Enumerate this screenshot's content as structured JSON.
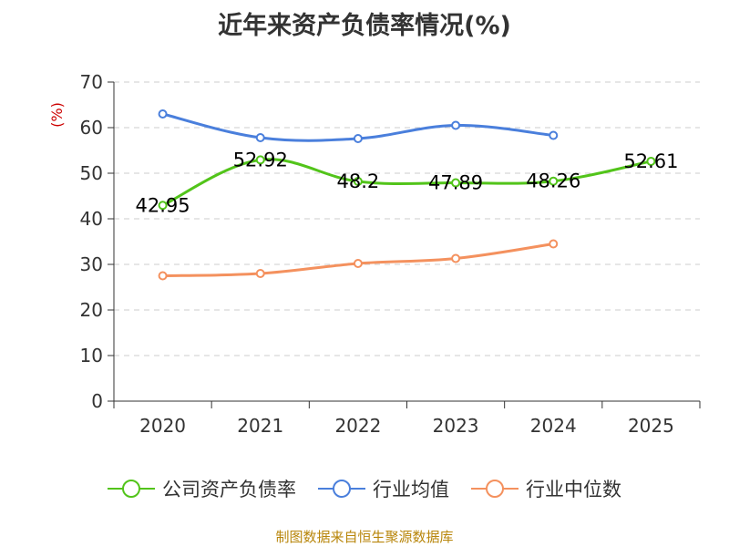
{
  "chart_data": {
    "type": "line",
    "title": "近年来资产负债率情况(%)",
    "ylabel": "(%)",
    "ylim": [
      0,
      70
    ],
    "yticks": [
      0,
      10,
      20,
      30,
      40,
      50,
      60,
      70
    ],
    "grid": true,
    "legend_position": "bottom",
    "categories": [
      "2020",
      "2021",
      "2022",
      "2023",
      "2024",
      "2025"
    ],
    "series": [
      {
        "name": "公司资产负债率",
        "color": "#52c41a",
        "values": [
          42.95,
          52.92,
          48.2,
          47.89,
          48.26,
          52.61
        ],
        "labels": [
          "42.95",
          "52.92",
          "48.2",
          "47.89",
          "48.26",
          "52.61"
        ]
      },
      {
        "name": "行业均值",
        "color": "#4a7fdc",
        "values": [
          63.0,
          57.8,
          57.6,
          60.5,
          58.3,
          null
        ]
      },
      {
        "name": "行业中位数",
        "color": "#f4915e",
        "values": [
          27.5,
          28.0,
          30.2,
          31.3,
          34.5,
          null
        ]
      }
    ]
  },
  "footer": {
    "source": "制图数据来自恒生聚源数据库"
  }
}
